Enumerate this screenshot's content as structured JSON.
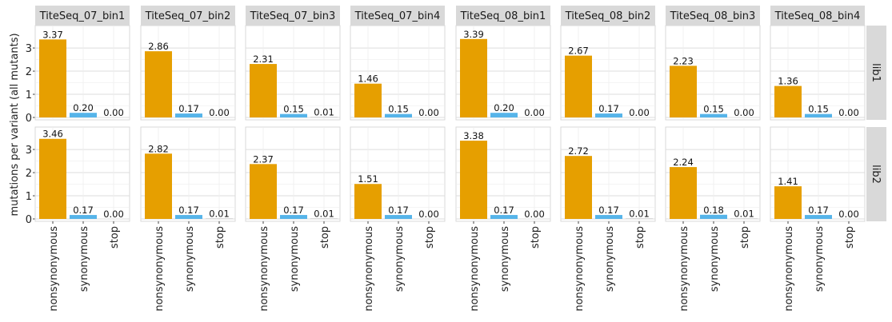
{
  "chart_data": {
    "type": "bar",
    "ylabel": "mutations per variant (all mutants)",
    "xlabel": "",
    "ylim": [
      0,
      3.9
    ],
    "yticks": [
      "0",
      "1",
      "2",
      "3"
    ],
    "categories": [
      "nonsynonymous",
      "synonymous",
      "stop"
    ],
    "category_colors": {
      "nonsynonymous": "#E69F00",
      "synonymous": "#56B4E9",
      "stop": "#999999"
    },
    "columns": [
      "TiteSeq_07_bin1",
      "TiteSeq_07_bin2",
      "TiteSeq_07_bin3",
      "TiteSeq_07_bin4",
      "TiteSeq_08_bin1",
      "TiteSeq_08_bin2",
      "TiteSeq_08_bin3",
      "TiteSeq_08_bin4"
    ],
    "rows": [
      "lib1",
      "lib2"
    ],
    "values": {
      "lib1": [
        [
          3.37,
          0.2,
          0.0
        ],
        [
          2.86,
          0.17,
          0.0
        ],
        [
          2.31,
          0.15,
          0.01
        ],
        [
          1.46,
          0.15,
          0.0
        ],
        [
          3.39,
          0.2,
          0.0
        ],
        [
          2.67,
          0.17,
          0.0
        ],
        [
          2.23,
          0.15,
          0.0
        ],
        [
          1.36,
          0.15,
          0.0
        ]
      ],
      "lib2": [
        [
          3.46,
          0.17,
          0.0
        ],
        [
          2.82,
          0.17,
          0.01
        ],
        [
          2.37,
          0.17,
          0.01
        ],
        [
          1.51,
          0.17,
          0.0
        ],
        [
          3.38,
          0.17,
          0.0
        ],
        [
          2.72,
          0.17,
          0.01
        ],
        [
          2.24,
          0.18,
          0.01
        ],
        [
          1.41,
          0.17,
          0.0
        ]
      ]
    },
    "labels": {
      "lib1": [
        [
          "3.37",
          "0.20",
          "0.00"
        ],
        [
          "2.86",
          "0.17",
          "0.00"
        ],
        [
          "2.31",
          "0.15",
          "0.01"
        ],
        [
          "1.46",
          "0.15",
          "0.00"
        ],
        [
          "3.39",
          "0.20",
          "0.00"
        ],
        [
          "2.67",
          "0.17",
          "0.00"
        ],
        [
          "2.23",
          "0.15",
          "0.00"
        ],
        [
          "1.36",
          "0.15",
          "0.00"
        ]
      ],
      "lib2": [
        [
          "3.46",
          "0.17",
          "0.00"
        ],
        [
          "2.82",
          "0.17",
          "0.01"
        ],
        [
          "2.37",
          "0.17",
          "0.01"
        ],
        [
          "1.51",
          "0.17",
          "0.00"
        ],
        [
          "3.38",
          "0.17",
          "0.00"
        ],
        [
          "2.72",
          "0.17",
          "0.01"
        ],
        [
          "2.24",
          "0.18",
          "0.01"
        ],
        [
          "1.41",
          "0.17",
          "0.00"
        ]
      ]
    },
    "grid": true,
    "legend": "none"
  }
}
